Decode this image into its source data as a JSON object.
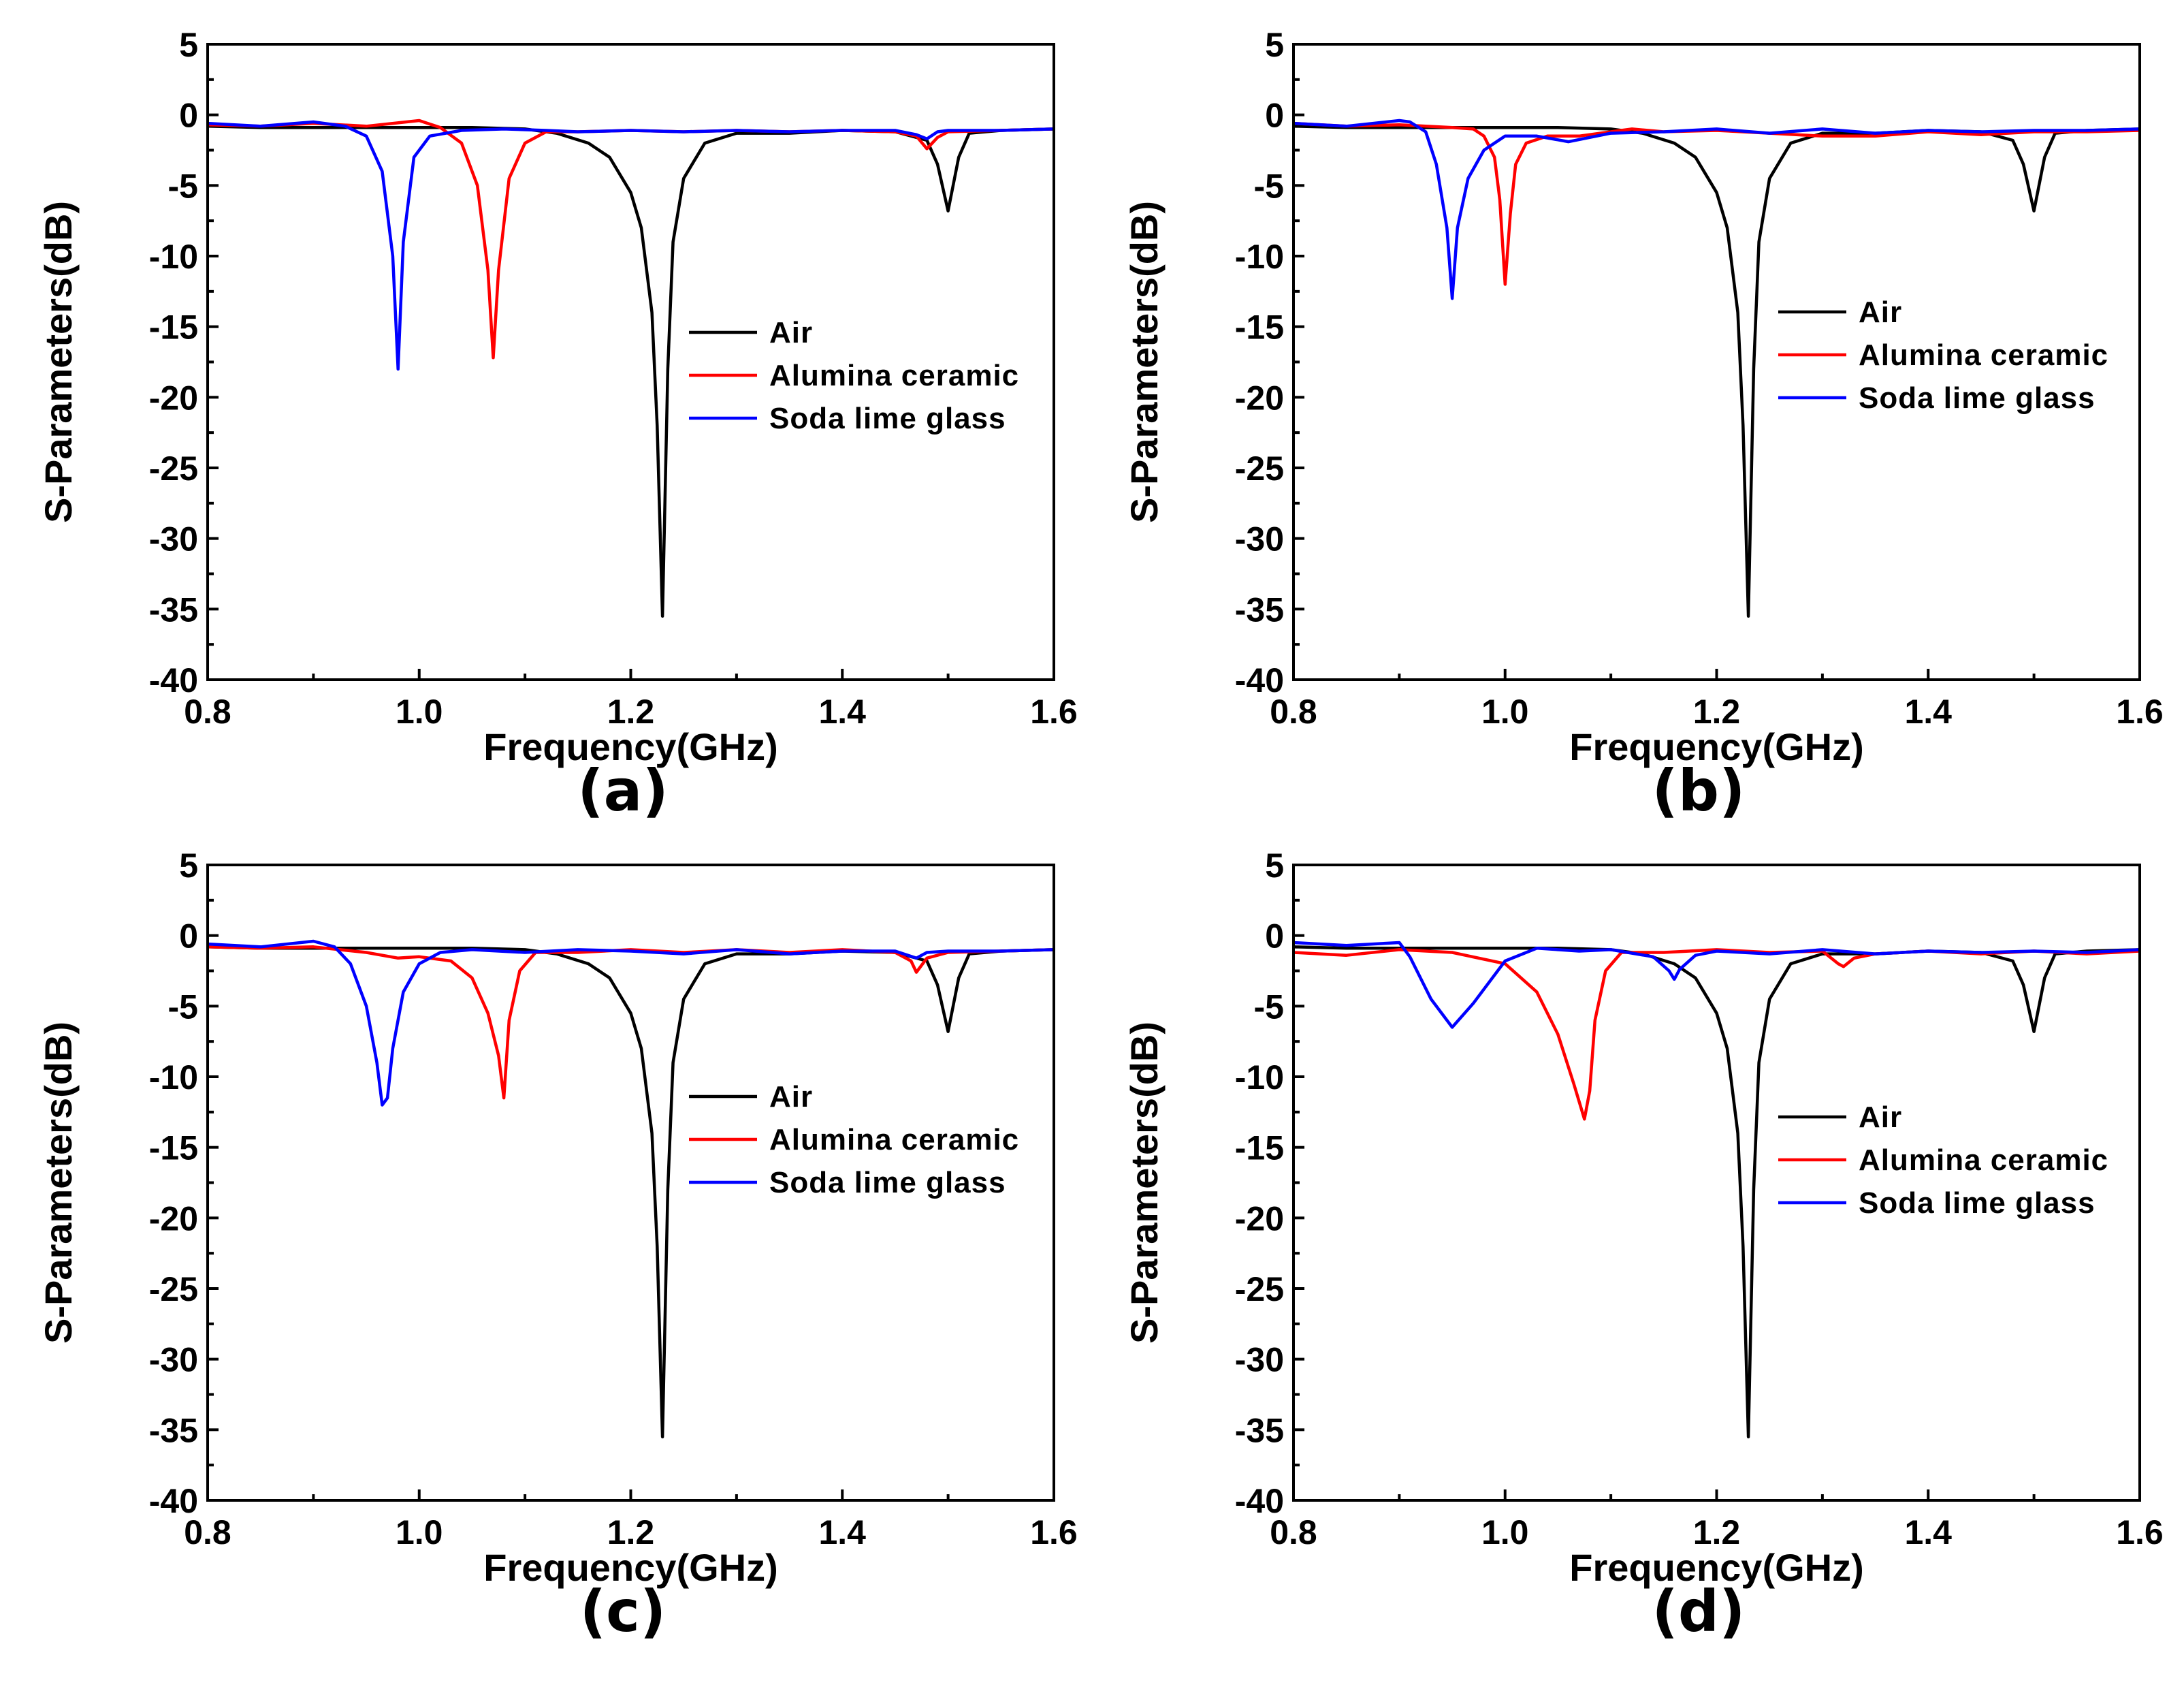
{
  "chart_data": [
    {
      "type": "line",
      "panel_label": "(a)",
      "xlabel": "Frequency(GHz)",
      "ylabel": "S-Parameters(dB)",
      "xlim": [
        0.8,
        1.6
      ],
      "ylim": [
        -40,
        5
      ],
      "xticks": [
        "0.8",
        "1.0",
        "1.2",
        "1.4",
        "1.6"
      ],
      "yticks": [
        "5",
        "0",
        "-5",
        "-10",
        "-15",
        "-20",
        "-25",
        "-30",
        "-35",
        "-40"
      ],
      "legend_position": "center-right",
      "series": [
        {
          "name": "Air",
          "color": "#000000",
          "x": [
            0.8,
            0.85,
            0.9,
            0.95,
            1.0,
            1.05,
            1.1,
            1.13,
            1.16,
            1.18,
            1.2,
            1.21,
            1.22,
            1.225,
            1.23,
            1.235,
            1.24,
            1.25,
            1.27,
            1.3,
            1.35,
            1.4,
            1.45,
            1.48,
            1.49,
            1.5,
            1.51,
            1.52,
            1.55,
            1.6
          ],
          "y": [
            -0.8,
            -0.9,
            -0.9,
            -0.9,
            -0.9,
            -0.9,
            -1.0,
            -1.3,
            -2.0,
            -3.0,
            -5.5,
            -8.0,
            -14.0,
            -22.0,
            -35.5,
            -18.0,
            -9.0,
            -4.5,
            -2.0,
            -1.3,
            -1.3,
            -1.1,
            -1.2,
            -1.8,
            -3.5,
            -6.8,
            -3.0,
            -1.3,
            -1.1,
            -1.0
          ]
        },
        {
          "name": "Alumina ceramic",
          "color": "#ff0000",
          "x": [
            0.8,
            0.85,
            0.9,
            0.95,
            1.0,
            1.02,
            1.04,
            1.055,
            1.065,
            1.07,
            1.075,
            1.085,
            1.1,
            1.12,
            1.15,
            1.2,
            1.25,
            1.3,
            1.35,
            1.4,
            1.45,
            1.47,
            1.48,
            1.49,
            1.5,
            1.55,
            1.6
          ],
          "y": [
            -0.7,
            -0.8,
            -0.6,
            -0.8,
            -0.4,
            -0.9,
            -2.0,
            -5.0,
            -11.0,
            -17.2,
            -11.0,
            -4.5,
            -2.0,
            -1.2,
            -1.2,
            -1.1,
            -1.2,
            -1.1,
            -1.2,
            -1.1,
            -1.2,
            -1.5,
            -2.4,
            -1.6,
            -1.2,
            -1.1,
            -1.0
          ]
        },
        {
          "name": "Soda lime glass",
          "color": "#0000ff",
          "x": [
            0.8,
            0.85,
            0.9,
            0.93,
            0.95,
            0.965,
            0.975,
            0.98,
            0.985,
            0.995,
            1.01,
            1.04,
            1.08,
            1.12,
            1.15,
            1.2,
            1.25,
            1.3,
            1.35,
            1.4,
            1.45,
            1.47,
            1.48,
            1.49,
            1.5,
            1.55,
            1.6
          ],
          "y": [
            -0.6,
            -0.8,
            -0.5,
            -0.8,
            -1.5,
            -4.0,
            -10.0,
            -18.0,
            -9.0,
            -3.0,
            -1.5,
            -1.1,
            -1.0,
            -1.1,
            -1.2,
            -1.1,
            -1.2,
            -1.1,
            -1.2,
            -1.1,
            -1.1,
            -1.4,
            -1.7,
            -1.2,
            -1.1,
            -1.1,
            -1.0
          ]
        }
      ],
      "legend": [
        "Air",
        "Alumina ceramic",
        "Soda lime glass"
      ]
    },
    {
      "type": "line",
      "panel_label": "(b)",
      "xlabel": "Frequency(GHz)",
      "ylabel": "S-Parameters(dB)",
      "xlim": [
        0.8,
        1.6
      ],
      "ylim": [
        -40,
        5
      ],
      "xticks": [
        "0.8",
        "1.0",
        "1.2",
        "1.4",
        "1.6"
      ],
      "yticks": [
        "5",
        "0",
        "-5",
        "-10",
        "-15",
        "-20",
        "-25",
        "-30",
        "-35",
        "-40"
      ],
      "legend_position": "center-right",
      "series": [
        {
          "name": "Air",
          "color": "#000000",
          "x": [
            0.8,
            0.85,
            0.9,
            0.95,
            1.0,
            1.05,
            1.1,
            1.13,
            1.16,
            1.18,
            1.2,
            1.21,
            1.22,
            1.225,
            1.23,
            1.235,
            1.24,
            1.25,
            1.27,
            1.3,
            1.35,
            1.4,
            1.45,
            1.48,
            1.49,
            1.5,
            1.51,
            1.52,
            1.55,
            1.6
          ],
          "y": [
            -0.8,
            -0.9,
            -0.9,
            -0.9,
            -0.9,
            -0.9,
            -1.0,
            -1.3,
            -2.0,
            -3.0,
            -5.5,
            -8.0,
            -14.0,
            -22.0,
            -35.5,
            -18.0,
            -9.0,
            -4.5,
            -2.0,
            -1.3,
            -1.3,
            -1.1,
            -1.2,
            -1.8,
            -3.5,
            -6.8,
            -3.0,
            -1.3,
            -1.1,
            -1.0
          ]
        },
        {
          "name": "Alumina ceramic",
          "color": "#ff0000",
          "x": [
            0.8,
            0.85,
            0.9,
            0.95,
            0.97,
            0.98,
            0.99,
            0.995,
            1.0,
            1.005,
            1.01,
            1.02,
            1.04,
            1.07,
            1.1,
            1.12,
            1.15,
            1.2,
            1.25,
            1.3,
            1.35,
            1.4,
            1.45,
            1.5,
            1.55,
            1.6
          ],
          "y": [
            -0.6,
            -0.8,
            -0.7,
            -0.9,
            -1.0,
            -1.5,
            -3.0,
            -6.0,
            -12.0,
            -7.0,
            -3.5,
            -2.0,
            -1.5,
            -1.5,
            -1.2,
            -1.0,
            -1.2,
            -1.1,
            -1.3,
            -1.5,
            -1.5,
            -1.2,
            -1.4,
            -1.2,
            -1.2,
            -1.1
          ]
        },
        {
          "name": "Soda lime glass",
          "color": "#0000ff",
          "x": [
            0.8,
            0.85,
            0.9,
            0.91,
            0.925,
            0.935,
            0.945,
            0.95,
            0.955,
            0.965,
            0.98,
            1.0,
            1.03,
            1.06,
            1.1,
            1.15,
            1.2,
            1.25,
            1.3,
            1.35,
            1.4,
            1.45,
            1.5,
            1.55,
            1.6
          ],
          "y": [
            -0.6,
            -0.8,
            -0.4,
            -0.5,
            -1.2,
            -3.5,
            -8.0,
            -13.0,
            -8.0,
            -4.5,
            -2.5,
            -1.5,
            -1.5,
            -1.9,
            -1.3,
            -1.2,
            -1.0,
            -1.3,
            -1.0,
            -1.3,
            -1.1,
            -1.2,
            -1.1,
            -1.1,
            -1.0
          ]
        }
      ],
      "legend": [
        "Air",
        "Alumina ceramic",
        "Soda lime glass"
      ]
    },
    {
      "type": "line",
      "panel_label": "(c)",
      "xlabel": "Frequency(GHz)",
      "ylabel": "S-Parameters(dB)",
      "xlim": [
        0.8,
        1.6
      ],
      "ylim": [
        -40,
        5
      ],
      "xticks": [
        "0.8",
        "1.0",
        "1.2",
        "1.4",
        "1.6"
      ],
      "yticks": [
        "5",
        "0",
        "-5",
        "-10",
        "-15",
        "-20",
        "-25",
        "-30",
        "-35",
        "-40"
      ],
      "legend_position": "center-right",
      "series": [
        {
          "name": "Air",
          "color": "#000000",
          "x": [
            0.8,
            0.85,
            0.9,
            0.95,
            1.0,
            1.05,
            1.1,
            1.13,
            1.16,
            1.18,
            1.2,
            1.21,
            1.22,
            1.225,
            1.23,
            1.235,
            1.24,
            1.25,
            1.27,
            1.3,
            1.35,
            1.4,
            1.45,
            1.48,
            1.49,
            1.5,
            1.51,
            1.52,
            1.55,
            1.6
          ],
          "y": [
            -0.8,
            -0.9,
            -0.9,
            -0.9,
            -0.9,
            -0.9,
            -1.0,
            -1.3,
            -2.0,
            -3.0,
            -5.5,
            -8.0,
            -14.0,
            -22.0,
            -35.5,
            -18.0,
            -9.0,
            -4.5,
            -2.0,
            -1.3,
            -1.3,
            -1.1,
            -1.2,
            -1.8,
            -3.5,
            -6.8,
            -3.0,
            -1.3,
            -1.1,
            -1.0
          ]
        },
        {
          "name": "Alumina ceramic",
          "color": "#ff0000",
          "x": [
            0.8,
            0.85,
            0.9,
            0.95,
            0.98,
            1.0,
            1.03,
            1.05,
            1.065,
            1.075,
            1.08,
            1.085,
            1.095,
            1.11,
            1.15,
            1.2,
            1.25,
            1.3,
            1.35,
            1.4,
            1.45,
            1.465,
            1.47,
            1.48,
            1.5,
            1.55,
            1.6
          ],
          "y": [
            -0.8,
            -0.9,
            -0.8,
            -1.2,
            -1.6,
            -1.5,
            -1.8,
            -3.0,
            -5.5,
            -8.5,
            -11.5,
            -6.0,
            -2.5,
            -1.2,
            -1.2,
            -1.0,
            -1.2,
            -1.0,
            -1.2,
            -1.0,
            -1.2,
            -1.8,
            -2.6,
            -1.6,
            -1.2,
            -1.1,
            -1.0
          ]
        },
        {
          "name": "Soda lime glass",
          "color": "#0000ff",
          "x": [
            0.8,
            0.85,
            0.9,
            0.92,
            0.935,
            0.95,
            0.96,
            0.965,
            0.97,
            0.975,
            0.985,
            1.0,
            1.02,
            1.05,
            1.1,
            1.15,
            1.2,
            1.25,
            1.3,
            1.35,
            1.4,
            1.45,
            1.47,
            1.48,
            1.5,
            1.55,
            1.6
          ],
          "y": [
            -0.6,
            -0.8,
            -0.4,
            -0.8,
            -2.0,
            -5.0,
            -9.0,
            -12.0,
            -11.5,
            -8.0,
            -4.0,
            -2.0,
            -1.2,
            -1.0,
            -1.2,
            -1.0,
            -1.1,
            -1.3,
            -1.0,
            -1.3,
            -1.1,
            -1.1,
            -1.6,
            -1.2,
            -1.1,
            -1.1,
            -1.0
          ]
        }
      ],
      "legend": [
        "Air",
        "Alumina ceramic",
        "Soda lime glass"
      ]
    },
    {
      "type": "line",
      "panel_label": "(d)",
      "xlabel": "Frequency(GHz)",
      "ylabel": "S-Parameters(dB)",
      "xlim": [
        0.8,
        1.6
      ],
      "ylim": [
        -40,
        5
      ],
      "xticks": [
        "0.8",
        "1.0",
        "1.2",
        "1.4",
        "1.6"
      ],
      "yticks": [
        "5",
        "0",
        "-5",
        "-10",
        "-15",
        "-20",
        "-25",
        "-30",
        "-35",
        "-40"
      ],
      "legend_position": "center-right",
      "series": [
        {
          "name": "Air",
          "color": "#000000",
          "x": [
            0.8,
            0.85,
            0.9,
            0.95,
            1.0,
            1.05,
            1.1,
            1.13,
            1.16,
            1.18,
            1.2,
            1.21,
            1.22,
            1.225,
            1.23,
            1.235,
            1.24,
            1.25,
            1.27,
            1.3,
            1.35,
            1.4,
            1.45,
            1.48,
            1.49,
            1.5,
            1.51,
            1.52,
            1.55,
            1.6
          ],
          "y": [
            -0.8,
            -0.9,
            -0.9,
            -0.9,
            -0.9,
            -0.9,
            -1.0,
            -1.3,
            -2.0,
            -3.0,
            -5.5,
            -8.0,
            -14.0,
            -22.0,
            -35.5,
            -18.0,
            -9.0,
            -4.5,
            -2.0,
            -1.3,
            -1.3,
            -1.1,
            -1.2,
            -1.8,
            -3.5,
            -6.8,
            -3.0,
            -1.3,
            -1.1,
            -1.0
          ]
        },
        {
          "name": "Alumina ceramic",
          "color": "#ff0000",
          "x": [
            0.8,
            0.85,
            0.9,
            0.95,
            1.0,
            1.03,
            1.05,
            1.065,
            1.075,
            1.08,
            1.085,
            1.095,
            1.11,
            1.15,
            1.2,
            1.25,
            1.3,
            1.315,
            1.32,
            1.33,
            1.35,
            1.4,
            1.45,
            1.5,
            1.55,
            1.6
          ],
          "y": [
            -1.2,
            -1.4,
            -1.0,
            -1.2,
            -2.0,
            -4.0,
            -7.0,
            -10.5,
            -13.0,
            -11.0,
            -6.0,
            -2.5,
            -1.2,
            -1.2,
            -1.0,
            -1.2,
            -1.1,
            -2.0,
            -2.2,
            -1.6,
            -1.3,
            -1.1,
            -1.3,
            -1.1,
            -1.3,
            -1.1
          ]
        },
        {
          "name": "Soda lime glass",
          "color": "#0000ff",
          "x": [
            0.8,
            0.85,
            0.9,
            0.91,
            0.93,
            0.95,
            0.97,
            1.0,
            1.03,
            1.07,
            1.1,
            1.14,
            1.155,
            1.16,
            1.165,
            1.18,
            1.2,
            1.25,
            1.3,
            1.35,
            1.4,
            1.45,
            1.5,
            1.55,
            1.6
          ],
          "y": [
            -0.5,
            -0.7,
            -0.5,
            -1.5,
            -4.5,
            -6.5,
            -4.8,
            -1.8,
            -0.9,
            -1.1,
            -1.0,
            -1.5,
            -2.5,
            -3.1,
            -2.4,
            -1.4,
            -1.1,
            -1.3,
            -1.0,
            -1.3,
            -1.1,
            -1.2,
            -1.1,
            -1.2,
            -1.0
          ]
        }
      ],
      "legend": [
        "Air",
        "Alumina ceramic",
        "Soda lime glass"
      ]
    }
  ]
}
